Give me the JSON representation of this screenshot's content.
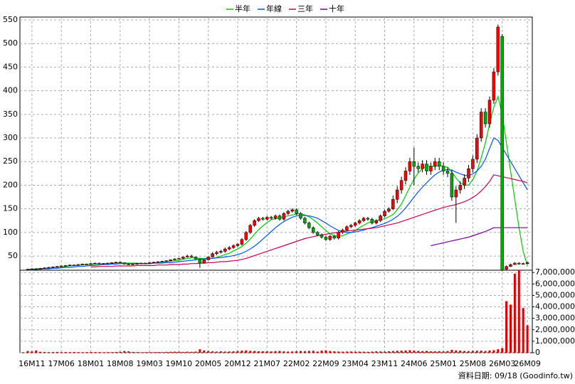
{
  "chart_data": {
    "type": "candlestick",
    "categories": [
      null,
      "16M11",
      null,
      null,
      null,
      null,
      null,
      null,
      "17M06",
      null,
      null,
      null,
      null,
      null,
      null,
      "18M01",
      null,
      null,
      null,
      null,
      null,
      null,
      "18M08",
      null,
      null,
      null,
      null,
      null,
      null,
      "19M03",
      null,
      null,
      null,
      null,
      null,
      null,
      "19M10",
      null,
      null,
      null,
      null,
      null,
      null,
      "20M05",
      null,
      null,
      null,
      null,
      null,
      null,
      "20M12",
      null,
      null,
      null,
      null,
      null,
      null,
      "21M07",
      null,
      null,
      null,
      null,
      null,
      null,
      "22M02",
      null,
      null,
      null,
      null,
      null,
      null,
      "22M09",
      null,
      null,
      null,
      null,
      null,
      null,
      "23M04",
      null,
      null,
      null,
      null,
      null,
      null,
      "23M11",
      null,
      null,
      null,
      null,
      null,
      null,
      "24M06",
      null,
      null,
      null,
      null,
      null,
      null,
      "25M01",
      null,
      null,
      null,
      null,
      null,
      null,
      "25M08",
      null,
      null,
      null,
      null,
      null,
      null,
      "26M03",
      null,
      null,
      null,
      null,
      null,
      "26M09"
    ],
    "open": [
      21,
      22,
      23,
      23,
      24,
      25,
      26,
      27,
      28,
      29,
      30,
      31,
      31,
      32,
      33,
      33,
      34,
      35,
      34,
      34,
      35,
      36,
      37,
      36,
      33,
      32,
      33,
      34,
      35,
      35,
      36,
      37,
      38,
      39,
      40,
      42,
      44,
      45,
      48,
      50,
      48,
      44,
      35,
      42,
      48,
      55,
      58,
      60,
      65,
      68,
      72,
      75,
      85,
      100,
      115,
      125,
      130,
      128,
      132,
      130,
      135,
      128,
      140,
      145,
      148,
      140,
      130,
      120,
      110,
      100,
      95,
      90,
      85,
      92,
      88,
      100,
      105,
      112,
      115,
      120,
      125,
      130,
      128,
      120,
      125,
      135,
      145,
      150,
      170,
      190,
      210,
      230,
      250,
      240,
      235,
      245,
      230,
      240,
      250,
      240,
      230,
      225,
      175,
      190,
      200,
      215,
      235,
      255,
      300,
      355,
      330,
      380,
      440,
      515,
      22,
      28,
      32,
      35,
      33,
      34
    ],
    "high": [
      23,
      24,
      24,
      25,
      26,
      27,
      28,
      29,
      30,
      31,
      32,
      32,
      33,
      34,
      34,
      35,
      36,
      36,
      35,
      36,
      37,
      38,
      38,
      37,
      34,
      34,
      35,
      36,
      36,
      37,
      38,
      39,
      40,
      41,
      43,
      45,
      46,
      49,
      53,
      53,
      49,
      45,
      43,
      49,
      58,
      61,
      63,
      68,
      71,
      75,
      78,
      88,
      103,
      118,
      128,
      133,
      133,
      135,
      135,
      138,
      138,
      143,
      148,
      151,
      151,
      143,
      133,
      123,
      113,
      103,
      98,
      93,
      95,
      95,
      103,
      108,
      115,
      118,
      123,
      128,
      133,
      133,
      131,
      128,
      138,
      148,
      153,
      178,
      198,
      218,
      238,
      258,
      280,
      248,
      253,
      253,
      248,
      258,
      258,
      248,
      238,
      233,
      198,
      208,
      223,
      243,
      263,
      308,
      363,
      363,
      388,
      448,
      540,
      520,
      30,
      34,
      37,
      37,
      36,
      38
    ],
    "low": [
      20,
      21,
      22,
      22,
      23,
      24,
      25,
      26,
      27,
      28,
      29,
      30,
      30,
      31,
      32,
      32,
      33,
      33,
      33,
      33,
      34,
      35,
      35,
      32,
      31,
      31,
      32,
      33,
      34,
      34,
      35,
      36,
      37,
      38,
      39,
      41,
      43,
      44,
      47,
      47,
      43,
      25,
      34,
      41,
      47,
      52,
      55,
      57,
      62,
      65,
      69,
      72,
      82,
      97,
      112,
      122,
      125,
      125,
      127,
      127,
      125,
      125,
      137,
      142,
      137,
      127,
      117,
      107,
      97,
      92,
      87,
      82,
      82,
      85,
      85,
      97,
      102,
      109,
      112,
      117,
      122,
      125,
      117,
      117,
      122,
      132,
      142,
      147,
      162,
      182,
      202,
      222,
      200,
      227,
      227,
      222,
      222,
      232,
      232,
      222,
      217,
      167,
      120,
      182,
      192,
      207,
      227,
      247,
      292,
      322,
      322,
      372,
      432,
      18,
      21,
      27,
      31,
      32,
      32,
      33
    ],
    "close": [
      22,
      23,
      23,
      24,
      25,
      26,
      27,
      28,
      29,
      30,
      31,
      31,
      32,
      33,
      33,
      34,
      35,
      34,
      34,
      35,
      36,
      37,
      36,
      33,
      32,
      33,
      34,
      35,
      35,
      36,
      37,
      38,
      39,
      40,
      42,
      44,
      45,
      48,
      50,
      48,
      44,
      35,
      42,
      48,
      55,
      58,
      60,
      65,
      68,
      72,
      75,
      85,
      100,
      115,
      125,
      130,
      128,
      132,
      130,
      135,
      128,
      140,
      145,
      148,
      140,
      130,
      120,
      110,
      100,
      95,
      90,
      85,
      92,
      88,
      100,
      105,
      112,
      115,
      120,
      125,
      130,
      128,
      120,
      125,
      135,
      145,
      150,
      170,
      190,
      210,
      230,
      250,
      240,
      235,
      245,
      230,
      240,
      250,
      240,
      230,
      225,
      175,
      190,
      200,
      215,
      235,
      255,
      300,
      355,
      330,
      380,
      440,
      535,
      20,
      28,
      32,
      35,
      33,
      34,
      36
    ],
    "up_color": "#ff0000",
    "down_color": "#00aa00",
    "series": [
      {
        "name": "半年",
        "color": "#00cc00",
        "values": [
          22,
          22,
          23,
          23,
          24,
          24,
          25,
          26,
          27,
          28,
          29,
          30,
          30,
          31,
          32,
          32,
          33,
          33,
          34,
          34,
          34,
          35,
          35,
          35,
          35,
          35,
          35,
          34,
          34,
          34,
          35,
          36,
          37,
          38,
          39,
          40,
          41,
          43,
          45,
          46,
          46,
          45,
          45,
          45,
          45,
          47,
          50,
          53,
          56,
          61,
          65,
          70,
          77,
          86,
          96,
          106,
          114,
          121,
          127,
          129,
          131,
          133,
          135,
          137,
          139,
          140,
          137,
          133,
          127,
          120,
          112,
          104,
          97,
          93,
          92,
          93,
          97,
          100,
          104,
          110,
          115,
          120,
          123,
          125,
          127,
          129,
          133,
          138,
          148,
          160,
          178,
          196,
          213,
          226,
          235,
          240,
          240,
          240,
          242,
          240,
          238,
          228,
          215,
          205,
          200,
          200,
          212,
          230,
          258,
          290,
          330,
          365,
          388,
          350,
          290,
          230,
          170,
          110,
          60,
          30
        ]
      },
      {
        "name": "年線",
        "color": "#0055ff",
        "values": [
          21,
          21,
          22,
          22,
          23,
          23,
          24,
          24,
          25,
          26,
          26,
          27,
          28,
          28,
          29,
          30,
          30,
          31,
          32,
          32,
          33,
          33,
          34,
          34,
          34,
          34,
          34,
          34,
          34,
          34,
          35,
          35,
          35,
          36,
          36,
          37,
          38,
          39,
          40,
          41,
          42,
          43,
          44,
          44,
          45,
          46,
          47,
          48,
          49,
          51,
          53,
          56,
          60,
          65,
          71,
          78,
          86,
          94,
          102,
          110,
          117,
          123,
          128,
          132,
          135,
          136,
          136,
          135,
          133,
          130,
          125,
          120,
          114,
          109,
          104,
          102,
          100,
          100,
          101,
          103,
          105,
          108,
          110,
          113,
          116,
          119,
          123,
          128,
          134,
          142,
          152,
          163,
          175,
          186,
          196,
          205,
          214,
          222,
          228,
          232,
          233,
          232,
          228,
          224,
          221,
          220,
          224,
          230,
          240,
          255,
          278,
          300,
          295,
          280,
          265,
          250,
          235,
          220,
          205,
          190
        ]
      },
      {
        "name": "三年",
        "color": "#cc0055",
        "values": [
          null,
          null,
          null,
          null,
          null,
          null,
          null,
          null,
          null,
          null,
          null,
          null,
          null,
          null,
          null,
          27,
          27,
          28,
          28,
          28,
          28,
          29,
          29,
          29,
          29,
          29,
          30,
          30,
          30,
          30,
          30,
          31,
          31,
          31,
          32,
          32,
          32,
          33,
          33,
          34,
          34,
          35,
          35,
          36,
          36,
          37,
          38,
          38,
          39,
          40,
          41,
          43,
          45,
          48,
          51,
          54,
          57,
          60,
          63,
          66,
          69,
          72,
          75,
          78,
          81,
          84,
          87,
          89,
          91,
          93,
          95,
          96,
          98,
          99,
          100,
          102,
          103,
          104,
          105,
          106,
          107,
          108,
          109,
          110,
          112,
          114,
          116,
          118,
          120,
          123,
          126,
          129,
          132,
          135,
          138,
          141,
          144,
          147,
          150,
          153,
          155,
          157,
          159,
          162,
          165,
          169,
          174,
          180,
          188,
          197,
          208,
          222,
          220,
          218,
          216,
          214,
          212,
          210,
          208,
          205
        ]
      },
      {
        "name": "十年",
        "color": "#7700aa",
        "values": [
          null,
          null,
          null,
          null,
          null,
          null,
          null,
          null,
          null,
          null,
          null,
          null,
          null,
          null,
          null,
          null,
          null,
          null,
          null,
          null,
          null,
          null,
          null,
          null,
          null,
          null,
          null,
          null,
          null,
          null,
          null,
          null,
          null,
          null,
          null,
          null,
          null,
          null,
          null,
          null,
          null,
          null,
          null,
          null,
          null,
          null,
          null,
          null,
          null,
          null,
          null,
          null,
          null,
          null,
          null,
          null,
          null,
          null,
          null,
          null,
          null,
          null,
          null,
          null,
          null,
          null,
          null,
          null,
          null,
          null,
          null,
          null,
          null,
          null,
          null,
          null,
          null,
          null,
          null,
          null,
          null,
          null,
          null,
          null,
          null,
          null,
          null,
          null,
          null,
          null,
          null,
          null,
          null,
          null,
          null,
          null,
          72,
          74,
          76,
          78,
          80,
          82,
          84,
          86,
          88,
          90,
          93,
          96,
          99,
          102,
          106,
          110,
          110,
          110,
          110,
          110,
          110,
          110,
          110,
          110
        ]
      }
    ],
    "ylim": [
      20,
      556
    ],
    "yticks": [
      50,
      100,
      150,
      200,
      250,
      300,
      350,
      400,
      450,
      500,
      550
    ],
    "grid": true,
    "volume": {
      "color": "#dd0000",
      "values": [
        150000,
        120000,
        200000,
        80000,
        60000,
        50000,
        60000,
        70000,
        50000,
        60000,
        50000,
        60000,
        50000,
        40000,
        50000,
        60000,
        50000,
        50000,
        40000,
        50000,
        50000,
        60000,
        80000,
        150000,
        120000,
        60000,
        50000,
        40000,
        50000,
        50000,
        50000,
        60000,
        50000,
        70000,
        80000,
        90000,
        80000,
        70000,
        90000,
        80000,
        100000,
        300000,
        200000,
        150000,
        120000,
        100000,
        120000,
        100000,
        110000,
        120000,
        150000,
        180000,
        200000,
        160000,
        150000,
        120000,
        130000,
        120000,
        110000,
        140000,
        160000,
        120000,
        100000,
        110000,
        130000,
        150000,
        140000,
        160000,
        170000,
        100000,
        180000,
        200000,
        150000,
        120000,
        100000,
        90000,
        100000,
        110000,
        90000,
        100000,
        90000,
        80000,
        100000,
        120000,
        110000,
        100000,
        130000,
        150000,
        170000,
        180000,
        200000,
        220000,
        180000,
        150000,
        140000,
        160000,
        120000,
        130000,
        140000,
        120000,
        150000,
        250000,
        200000,
        180000,
        150000,
        140000,
        160000,
        170000,
        180000,
        150000,
        200000,
        220000,
        300000,
        400000,
        4500000,
        4200000,
        6900000,
        7200000,
        3900000,
        2400000
      ],
      "ylim": [
        0,
        7200000
      ],
      "yticks": [
        0,
        {
          "value": 1000000,
          "label": "1,000,000"
        },
        {
          "value": 2000000,
          "label": "2,000,000"
        },
        {
          "value": 3000000,
          "label": "3,000,000"
        },
        {
          "value": 4000000,
          "label": "4,000,000"
        },
        {
          "value": 5000000,
          "label": "5,000,000"
        },
        {
          "value": 6000000,
          "label": "6,000,000"
        },
        {
          "value": 7000000,
          "label": "7,000,000"
        }
      ]
    },
    "source": "資料日期: 09/18 (Goodinfo.tw)"
  }
}
